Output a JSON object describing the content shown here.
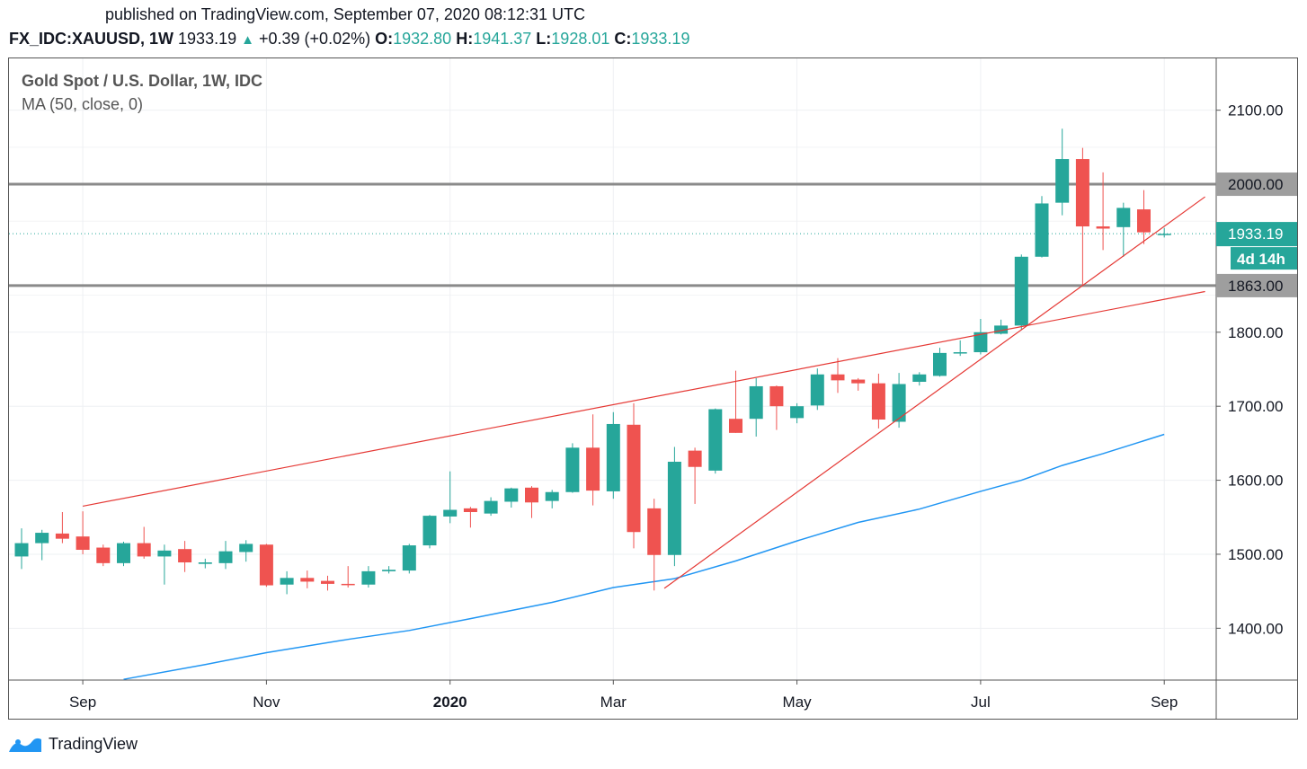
{
  "header": {
    "published": "published on TradingView.com, September 07, 2020 08:12:31 UTC",
    "symbol": "FX_IDC:XAUUSD, 1W",
    "last": "1933.19",
    "change": "+0.39 (+0.02%)",
    "o_label": "O:",
    "o": "1932.80",
    "h_label": "H:",
    "h": "1941.37",
    "l_label": "L:",
    "l": "1928.01",
    "c_label": "C:",
    "c": "1933.19"
  },
  "legend": {
    "title": "Gold Spot / U.S. Dollar, 1W, IDC",
    "indicator": "MA (50, close, 0)"
  },
  "brand": {
    "name": "TradingView"
  },
  "colors": {
    "up": "#26a69a",
    "down": "#ef5350",
    "ma": "#2196f3",
    "trendline": "#e53935",
    "level_line": "#8a8a8a",
    "price_badge": "#26a69a",
    "level_badge": "#9e9e9e"
  },
  "chart_data": {
    "type": "candlestick",
    "title": "Gold Spot / U.S. Dollar, 1W, IDC",
    "ylim": [
      1330,
      2170
    ],
    "y_ticks": [
      1400,
      1500,
      1600,
      1700,
      1800,
      2100
    ],
    "y_tick_labels": [
      "1400.00",
      "1500.00",
      "1600.00",
      "1700.00",
      "1800.00",
      "2100.00"
    ],
    "x_ticks": [
      {
        "index": 3,
        "label": "Sep",
        "bold": false
      },
      {
        "index": 12,
        "label": "Nov",
        "bold": false
      },
      {
        "index": 21,
        "label": "2020",
        "bold": true
      },
      {
        "index": 29,
        "label": "Mar",
        "bold": false
      },
      {
        "index": 38,
        "label": "May",
        "bold": false
      },
      {
        "index": 47,
        "label": "Jul",
        "bold": false
      },
      {
        "index": 56,
        "label": "Sep",
        "bold": false
      }
    ],
    "grid": true,
    "candles": [
      {
        "o": 1497,
        "h": 1535,
        "l": 1480,
        "c": 1515
      },
      {
        "o": 1515,
        "h": 1533,
        "l": 1492,
        "c": 1529
      },
      {
        "o": 1528,
        "h": 1557,
        "l": 1515,
        "c": 1521
      },
      {
        "o": 1524,
        "h": 1558,
        "l": 1500,
        "c": 1506
      },
      {
        "o": 1509,
        "h": 1513,
        "l": 1484,
        "c": 1488
      },
      {
        "o": 1488,
        "h": 1517,
        "l": 1484,
        "c": 1515
      },
      {
        "o": 1515,
        "h": 1537,
        "l": 1494,
        "c": 1497
      },
      {
        "o": 1497,
        "h": 1513,
        "l": 1459,
        "c": 1505
      },
      {
        "o": 1507,
        "h": 1518,
        "l": 1476,
        "c": 1489
      },
      {
        "o": 1487,
        "h": 1494,
        "l": 1481,
        "c": 1489
      },
      {
        "o": 1488,
        "h": 1518,
        "l": 1480,
        "c": 1504
      },
      {
        "o": 1503,
        "h": 1519,
        "l": 1490,
        "c": 1514
      },
      {
        "o": 1513,
        "h": 1514,
        "l": 1456,
        "c": 1458
      },
      {
        "o": 1459,
        "h": 1477,
        "l": 1446,
        "c": 1468
      },
      {
        "o": 1468,
        "h": 1478,
        "l": 1454,
        "c": 1463
      },
      {
        "o": 1464,
        "h": 1471,
        "l": 1451,
        "c": 1460
      },
      {
        "o": 1460,
        "h": 1484,
        "l": 1455,
        "c": 1459
      },
      {
        "o": 1459,
        "h": 1484,
        "l": 1455,
        "c": 1477
      },
      {
        "o": 1477,
        "h": 1484,
        "l": 1474,
        "c": 1479
      },
      {
        "o": 1478,
        "h": 1514,
        "l": 1474,
        "c": 1512
      },
      {
        "o": 1512,
        "h": 1553,
        "l": 1508,
        "c": 1552
      },
      {
        "o": 1551,
        "h": 1612,
        "l": 1542,
        "c": 1560
      },
      {
        "o": 1562,
        "h": 1564,
        "l": 1536,
        "c": 1557
      },
      {
        "o": 1555,
        "h": 1577,
        "l": 1552,
        "c": 1572
      },
      {
        "o": 1571,
        "h": 1590,
        "l": 1563,
        "c": 1589
      },
      {
        "o": 1590,
        "h": 1592,
        "l": 1549,
        "c": 1570
      },
      {
        "o": 1572,
        "h": 1587,
        "l": 1562,
        "c": 1584
      },
      {
        "o": 1584,
        "h": 1650,
        "l": 1583,
        "c": 1644
      },
      {
        "o": 1644,
        "h": 1689,
        "l": 1566,
        "c": 1586
      },
      {
        "o": 1585,
        "h": 1692,
        "l": 1575,
        "c": 1676
      },
      {
        "o": 1675,
        "h": 1704,
        "l": 1508,
        "c": 1530
      },
      {
        "o": 1562,
        "h": 1575,
        "l": 1451,
        "c": 1499
      },
      {
        "o": 1499,
        "h": 1645,
        "l": 1484,
        "c": 1625
      },
      {
        "o": 1640,
        "h": 1644,
        "l": 1568,
        "c": 1618
      },
      {
        "o": 1613,
        "h": 1697,
        "l": 1609,
        "c": 1696
      },
      {
        "o": 1683,
        "h": 1748,
        "l": 1664,
        "c": 1664
      },
      {
        "o": 1683,
        "h": 1738,
        "l": 1659,
        "c": 1727
      },
      {
        "o": 1727,
        "h": 1728,
        "l": 1668,
        "c": 1700
      },
      {
        "o": 1684,
        "h": 1704,
        "l": 1677,
        "c": 1700
      },
      {
        "o": 1701,
        "h": 1751,
        "l": 1695,
        "c": 1743
      },
      {
        "o": 1743,
        "h": 1765,
        "l": 1718,
        "c": 1735
      },
      {
        "o": 1736,
        "h": 1738,
        "l": 1721,
        "c": 1731
      },
      {
        "o": 1731,
        "h": 1744,
        "l": 1670,
        "c": 1682
      },
      {
        "o": 1679,
        "h": 1745,
        "l": 1671,
        "c": 1730
      },
      {
        "o": 1733,
        "h": 1746,
        "l": 1728,
        "c": 1743
      },
      {
        "o": 1741,
        "h": 1779,
        "l": 1740,
        "c": 1772
      },
      {
        "o": 1772,
        "h": 1789,
        "l": 1768,
        "c": 1773
      },
      {
        "o": 1773,
        "h": 1818,
        "l": 1770,
        "c": 1800
      },
      {
        "o": 1798,
        "h": 1817,
        "l": 1797,
        "c": 1809
      },
      {
        "o": 1809,
        "h": 1905,
        "l": 1803,
        "c": 1902
      },
      {
        "o": 1902,
        "h": 1984,
        "l": 1901,
        "c": 1974
      },
      {
        "o": 1975,
        "h": 2075,
        "l": 1958,
        "c": 2034
      },
      {
        "o": 2034,
        "h": 2049,
        "l": 1863,
        "c": 1943
      },
      {
        "o": 1943,
        "h": 2016,
        "l": 1911,
        "c": 1940
      },
      {
        "o": 1942,
        "h": 1975,
        "l": 1902,
        "c": 1968
      },
      {
        "o": 1966,
        "h": 1992,
        "l": 1919,
        "c": 1935
      },
      {
        "o": 1933,
        "h": 1941,
        "l": 1928,
        "c": 1933
      }
    ],
    "moving_average": {
      "name": "MA (50, close, 0)",
      "points": [
        {
          "i": 5,
          "v": 1331
        },
        {
          "i": 9,
          "v": 1351
        },
        {
          "i": 12,
          "v": 1367
        },
        {
          "i": 16,
          "v": 1385
        },
        {
          "i": 19,
          "v": 1397
        },
        {
          "i": 22,
          "v": 1413
        },
        {
          "i": 26,
          "v": 1435
        },
        {
          "i": 29,
          "v": 1455
        },
        {
          "i": 32,
          "v": 1467
        },
        {
          "i": 35,
          "v": 1491
        },
        {
          "i": 38,
          "v": 1518
        },
        {
          "i": 41,
          "v": 1543
        },
        {
          "i": 44,
          "v": 1561
        },
        {
          "i": 47,
          "v": 1585
        },
        {
          "i": 49,
          "v": 1600
        },
        {
          "i": 51,
          "v": 1620
        },
        {
          "i": 53,
          "v": 1636
        },
        {
          "i": 56,
          "v": 1662
        }
      ]
    },
    "trendlines": [
      {
        "x1": 3,
        "y1": 1565,
        "x2": 58,
        "y2": 1855
      },
      {
        "x1": 31.5,
        "y1": 1454,
        "x2": 58,
        "y2": 1983
      }
    ],
    "levels": [
      {
        "value": 2000,
        "label": "2000.00"
      },
      {
        "value": 1863,
        "label": "1863.00"
      }
    ],
    "last_price": {
      "value": 1933.19,
      "label": "1933.19",
      "countdown": "4d 14h"
    }
  }
}
